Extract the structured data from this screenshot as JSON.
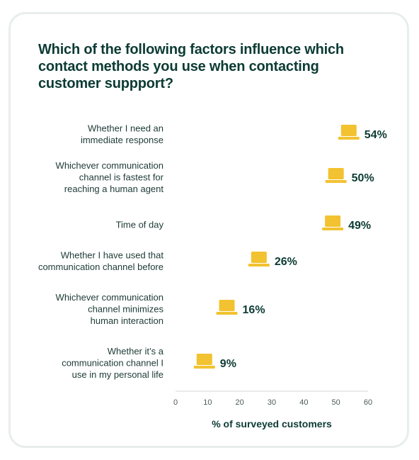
{
  "colors": {
    "accent": "#f2c230",
    "accent_dark": "#c9a020",
    "text": "#0c3b34",
    "axis": "#d5d9d8"
  },
  "icons": {
    "marker": "laptop-icon"
  },
  "chart_data": {
    "type": "scatter",
    "title": "Which of the following factors influence which contact methods you use when contacting customer suppport?",
    "xlabel": "% of surveyed customers",
    "xlim": [
      0,
      60
    ],
    "xticks": [
      0,
      10,
      20,
      30,
      40,
      50,
      60
    ],
    "grid": false,
    "categories": [
      [
        "Whether I need an",
        "immediate response"
      ],
      [
        "Whichever communication",
        "channel is fastest for",
        "reaching a human agent"
      ],
      [
        "Time of day"
      ],
      [
        "Whether I have used that",
        "communication channel before"
      ],
      [
        "Whichever communication",
        "channel minimizes",
        "human interaction"
      ],
      [
        "Whether it’s a",
        "communication channel I",
        "use in my personal life"
      ]
    ],
    "values": [
      54,
      50,
      49,
      26,
      16,
      9
    ],
    "data_labels": [
      "54%",
      "50%",
      "49%",
      "26%",
      "16%",
      "9%"
    ]
  }
}
